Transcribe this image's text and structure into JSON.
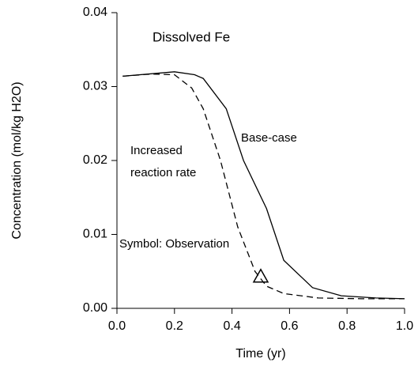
{
  "chart_data": {
    "type": "line",
    "title": "Dissolved Fe",
    "xlabel": "Time (yr)",
    "ylabel": "Concentration (mol/kg H2O)",
    "annotations": [
      "Base-case",
      "Increased",
      "reaction rate",
      "Symbol: Observation"
    ],
    "xlim": [
      0,
      1
    ],
    "xticks": [
      {
        "value": 0,
        "label": "0.0"
      },
      0.2,
      0.4,
      0.6,
      0.8,
      {
        "value": 1,
        "label": "1.0"
      }
    ],
    "ylim": [
      0,
      0.04
    ],
    "yticks": [
      {
        "value": 0,
        "label": "0.00"
      },
      {
        "value": 0.01,
        "label": "0.01"
      },
      {
        "value": 0.02,
        "label": "0.02"
      },
      {
        "value": 0.03,
        "label": "0.03"
      },
      {
        "value": 0.04,
        "label": "0.04"
      }
    ],
    "series": [
      {
        "color": "#000000",
        "style": "solid",
        "x": [
          0.02,
          0.2,
          0.27,
          0.3,
          0.38,
          0.44,
          0.52,
          0.58,
          0.68,
          0.78,
          0.9,
          1.0
        ],
        "values": [
          0.0314,
          0.032,
          0.0316,
          0.0311,
          0.027,
          0.02,
          0.0135,
          0.0065,
          0.0028,
          0.0017,
          0.0014,
          0.0013
        ]
      },
      {
        "color": "#000000",
        "style": "dashed",
        "x": [
          0.02,
          0.12,
          0.2,
          0.26,
          0.3,
          0.36,
          0.42,
          0.48,
          0.52,
          0.58,
          0.7,
          0.85,
          1.0
        ],
        "values": [
          0.0314,
          0.0317,
          0.0316,
          0.0298,
          0.027,
          0.02,
          0.011,
          0.005,
          0.003,
          0.002,
          0.0014,
          0.0013,
          0.0013
        ]
      },
      {
        "color": "#000000",
        "style": "marker",
        "marker": "triangle",
        "x": [
          0.5
        ],
        "values": [
          0.0043
        ]
      }
    ]
  }
}
